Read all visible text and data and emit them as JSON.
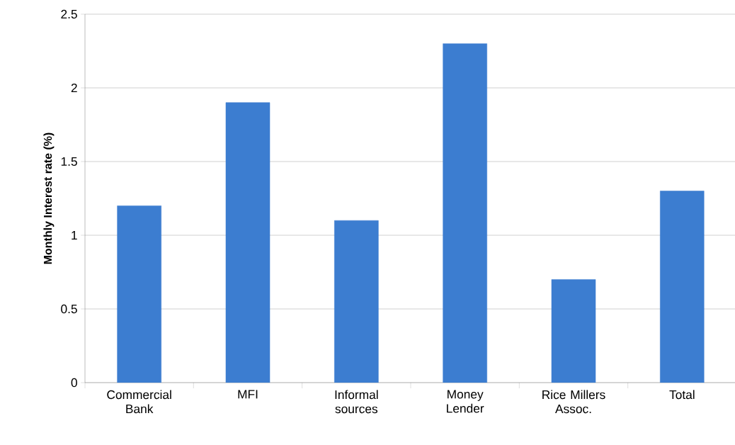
{
  "chart_data": {
    "type": "bar",
    "ylabel": "Monthly Interest rate (%)",
    "categories": [
      "Commercial Bank",
      "MFI",
      "Informal sources",
      "Money Lender",
      "Rice Millers Assoc.",
      "Total"
    ],
    "values": [
      1.2,
      1.9,
      1.1,
      2.3,
      0.7,
      1.3
    ],
    "color": "#3c7dd0",
    "ylim": [
      0,
      2.5
    ],
    "yticks": [
      0,
      0.5,
      1,
      1.5,
      2,
      2.5
    ],
    "grid": "y"
  }
}
